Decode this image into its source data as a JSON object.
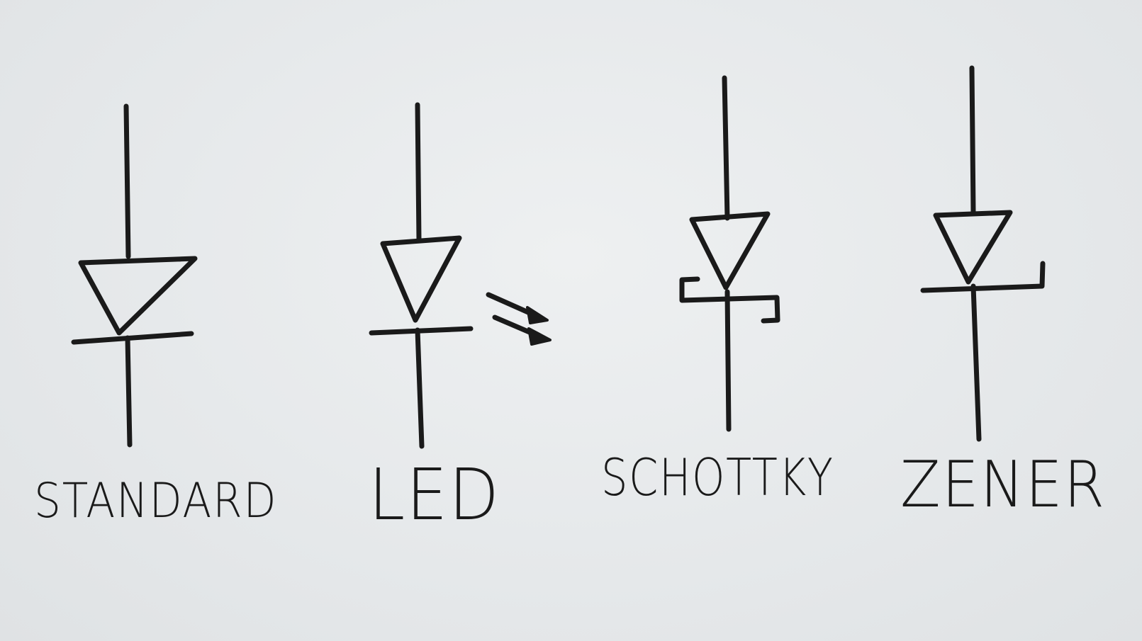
{
  "symbols": [
    {
      "id": "standard",
      "label": "STANDARD"
    },
    {
      "id": "led",
      "label": "LED"
    },
    {
      "id": "schottky",
      "label": "SCHOTTKY"
    },
    {
      "id": "zener",
      "label": "ZENER"
    }
  ],
  "colors": {
    "ink": "#1a1a1a",
    "board": "#e6e9eb"
  }
}
